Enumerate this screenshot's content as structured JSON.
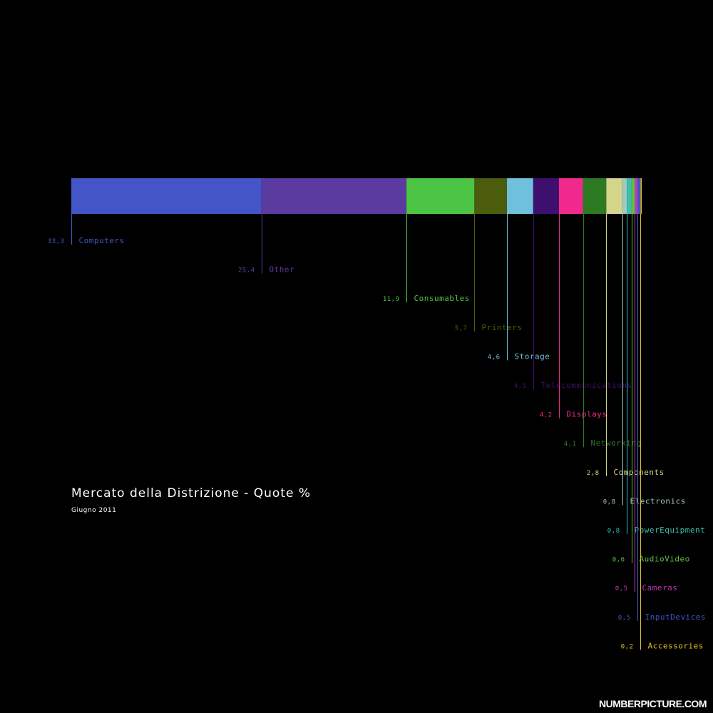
{
  "title": "Mercato della Distrizione - Quote %",
  "subtitle": "Giugno 2011",
  "brand": "NUMBERPICTURE.COM",
  "chart_data": {
    "type": "bar",
    "stacked": true,
    "orientation": "horizontal",
    "unit": "%",
    "categories": [
      "Computers",
      "Other",
      "Consumables",
      "Printers",
      "Storage",
      "Telecommunications",
      "Displays",
      "Networking",
      "Components",
      "Electronics",
      "PowerEquipment",
      "AudioVideo",
      "Cameras",
      "InputDevices",
      "Accessories"
    ],
    "values": [
      33.3,
      25.4,
      11.9,
      5.7,
      4.6,
      4.5,
      4.2,
      4.1,
      2.8,
      0.8,
      0.8,
      0.6,
      0.5,
      0.5,
      0.2
    ],
    "value_labels": [
      "33,3",
      "25,4",
      "11,9",
      "5,7",
      "4,6",
      "4,5",
      "4,2",
      "4,1",
      "2,8",
      "0,8",
      "0,8",
      "0,6",
      "0,5",
      "0,5",
      "0,2"
    ],
    "colors": [
      "#4455c8",
      "#5b3ba0",
      "#4cc444",
      "#4b5c0c",
      "#6ec0dc",
      "#3d0f6e",
      "#f02a8c",
      "#2e7a22",
      "#d4d48a",
      "#a2c8c0",
      "#3cc0b0",
      "#5cc040",
      "#c03cb0",
      "#4455c8",
      "#e0c020"
    ]
  }
}
